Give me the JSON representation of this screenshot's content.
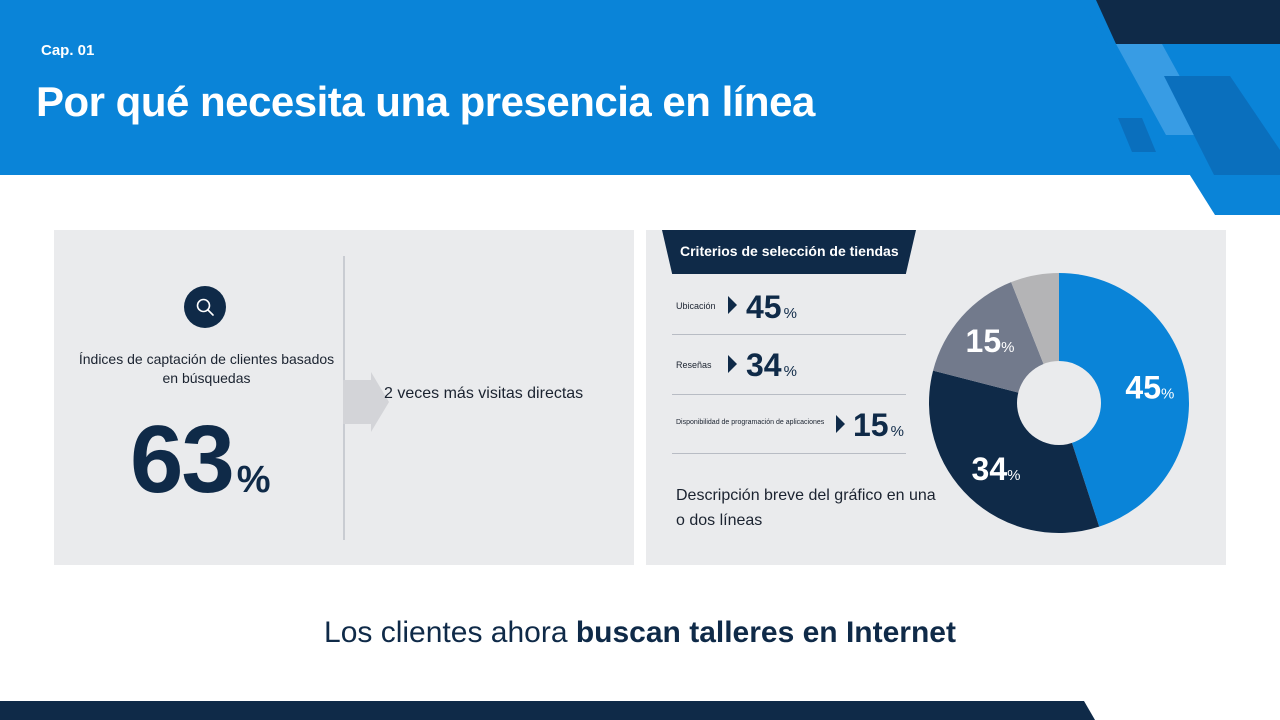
{
  "header": {
    "chapter": "Cap. 01",
    "title": "Por qué necesita una presencia en línea"
  },
  "left_panel": {
    "icon": "search-icon",
    "label": "Índices de captación de clientes basados en búsquedas",
    "value": "63",
    "unit": "%",
    "comparison": "2 veces más visitas directas"
  },
  "right_panel": {
    "title": "Criterios de selección de tiendas",
    "rows": [
      {
        "label": "Ubicación",
        "value": "45",
        "unit": "%"
      },
      {
        "label": "Reseñas",
        "value": "34",
        "unit": "%"
      },
      {
        "label": "Disponibilidad de programación de aplicaciones",
        "value": "15",
        "unit": "%"
      }
    ],
    "description": "Descripción breve del gráfico en una o dos líneas"
  },
  "chart_data": {
    "type": "pie",
    "donut": true,
    "categories": [
      "Ubicación",
      "Reseñas",
      "Disponibilidad de programación de aplicaciones",
      ""
    ],
    "values": [
      45,
      34,
      15,
      6
    ],
    "data_labels": [
      "45",
      "34",
      "15",
      ""
    ],
    "unit": "%",
    "colors": [
      "#0a84d8",
      "#0f2a48",
      "#727a8c",
      "#b4b4b6"
    ]
  },
  "footer": {
    "tagline_regular": "Los clientes ahora ",
    "tagline_bold": "buscan talleres en Internet"
  },
  "colors": {
    "primary_blue": "#0a84d8",
    "navy": "#0f2a48",
    "panel_bg": "#eaebed"
  }
}
